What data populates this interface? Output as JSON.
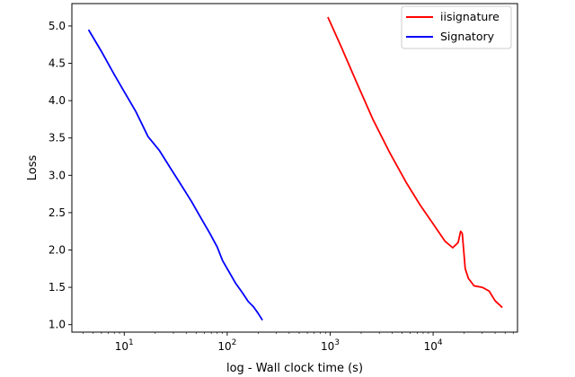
{
  "chart_data": {
    "type": "line",
    "title": "",
    "xlabel": "log - Wall clock time (s)",
    "ylabel": "Loss",
    "xscale": "log",
    "xlim": [
      3.1,
      66000
    ],
    "ylim": [
      0.9,
      5.3
    ],
    "x_ticks": [
      {
        "value": 10,
        "base": "10",
        "exp": "1"
      },
      {
        "value": 100,
        "base": "10",
        "exp": "2"
      },
      {
        "value": 1000,
        "base": "10",
        "exp": "3"
      },
      {
        "value": 10000,
        "base": "10",
        "exp": "4"
      }
    ],
    "y_ticks": [
      {
        "value": 1.0,
        "label": "1.0"
      },
      {
        "value": 1.5,
        "label": "1.5"
      },
      {
        "value": 2.0,
        "label": "2.0"
      },
      {
        "value": 2.5,
        "label": "2.5"
      },
      {
        "value": 3.0,
        "label": "3.0"
      },
      {
        "value": 3.5,
        "label": "3.5"
      },
      {
        "value": 4.0,
        "label": "4.0"
      },
      {
        "value": 4.5,
        "label": "4.5"
      },
      {
        "value": 5.0,
        "label": "5.0"
      }
    ],
    "grid": false,
    "legend_position": "top-right",
    "series": [
      {
        "name": "iisignature",
        "color": "#ff0000",
        "x": [
          950,
          1300,
          1800,
          2600,
          3800,
          5500,
          7500,
          10000,
          13000,
          15500,
          17500,
          18500,
          19200,
          20500,
          22000,
          25000,
          30000,
          35000,
          40000,
          47000
        ],
        "y": [
          5.12,
          4.7,
          4.25,
          3.75,
          3.3,
          2.9,
          2.6,
          2.35,
          2.12,
          2.03,
          2.1,
          2.25,
          2.22,
          1.75,
          1.62,
          1.52,
          1.5,
          1.45,
          1.32,
          1.23
        ]
      },
      {
        "name": "Signatory",
        "color": "#0000ff",
        "x": [
          4.5,
          6,
          8,
          10,
          13,
          17,
          22,
          28,
          35,
          45,
          55,
          68,
          80,
          90,
          100,
          120,
          140,
          160,
          180,
          200,
          220
        ],
        "y": [
          4.95,
          4.66,
          4.35,
          4.12,
          3.85,
          3.52,
          3.33,
          3.1,
          2.89,
          2.65,
          2.44,
          2.22,
          2.04,
          1.86,
          1.75,
          1.56,
          1.43,
          1.31,
          1.24,
          1.15,
          1.06
        ]
      }
    ]
  }
}
